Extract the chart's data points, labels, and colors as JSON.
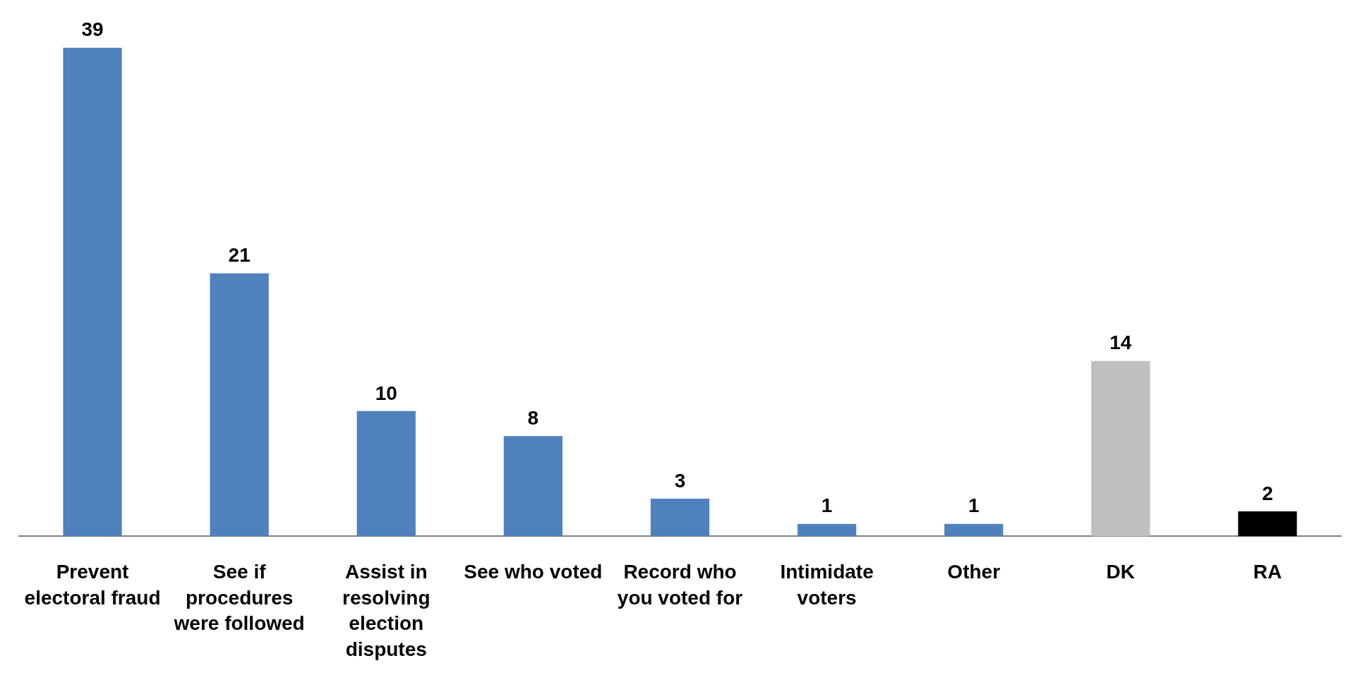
{
  "chart_data": {
    "type": "bar",
    "categories": [
      "Prevent electoral fraud",
      "See if procedures were followed",
      "Assist in resolving election disputes",
      "See who voted",
      "Record who you voted for",
      "Intimidate voters",
      "Other",
      "DK",
      "RA"
    ],
    "values": [
      39,
      21,
      10,
      8,
      3,
      1,
      1,
      14,
      2
    ],
    "colors": [
      "#4f81bd",
      "#4f81bd",
      "#4f81bd",
      "#4f81bd",
      "#4f81bd",
      "#4f81bd",
      "#4f81bd",
      "#bfbfbf",
      "#000000"
    ],
    "data_labels": true,
    "grid": false,
    "legend": false
  }
}
